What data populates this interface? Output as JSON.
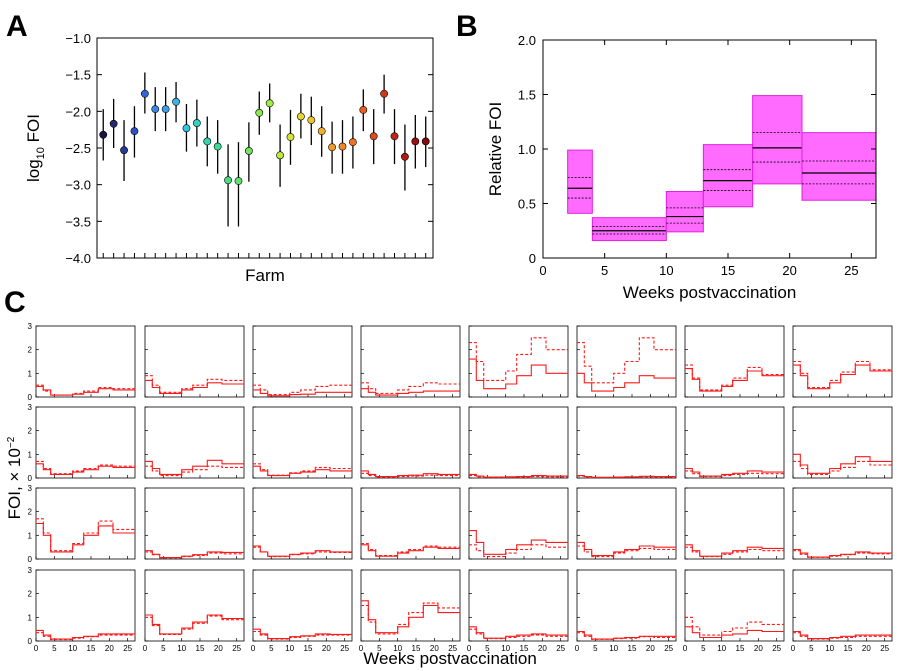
{
  "chart_data": [
    {
      "panel": "A",
      "type": "scatter",
      "xlabel": "Farm",
      "ylabel_base": "log",
      "ylabel_sub": "10",
      "ylabel_rest": " FOI",
      "ylim": [
        -4.0,
        -1.0
      ],
      "yticks": [
        -4.0,
        -3.5,
        -3.0,
        -2.5,
        -2.0,
        -1.5,
        -1.0
      ],
      "ytick_labels": [
        "−4.0",
        "−3.5",
        "−3.0",
        "−2.5",
        "−2.0",
        "−1.5",
        "−1.0"
      ],
      "xlim": [
        0,
        32
      ],
      "points": [
        {
          "farm": 1,
          "mean": -2.32,
          "low": -2.67,
          "high": -1.97,
          "color": "#1a1446"
        },
        {
          "farm": 2,
          "mean": -2.17,
          "low": -2.5,
          "high": -1.83,
          "color": "#232a72"
        },
        {
          "farm": 3,
          "mean": -2.53,
          "low": -2.95,
          "high": -2.12,
          "color": "#28389a"
        },
        {
          "farm": 4,
          "mean": -2.27,
          "low": -2.63,
          "high": -1.93,
          "color": "#2c50c0"
        },
        {
          "farm": 5,
          "mean": -1.76,
          "low": -2.03,
          "high": -1.47,
          "color": "#3266d8"
        },
        {
          "farm": 6,
          "mean": -1.97,
          "low": -2.27,
          "high": -1.67,
          "color": "#3a82e4"
        },
        {
          "farm": 7,
          "mean": -1.97,
          "low": -2.27,
          "high": -1.67,
          "color": "#3c9ee8"
        },
        {
          "farm": 8,
          "mean": -1.87,
          "low": -2.15,
          "high": -1.6,
          "color": "#3cb4e6"
        },
        {
          "farm": 9,
          "mean": -2.23,
          "low": -2.55,
          "high": -1.9,
          "color": "#30c8dc"
        },
        {
          "farm": 10,
          "mean": -2.16,
          "low": -2.48,
          "high": -1.84,
          "color": "#2ed2c4"
        },
        {
          "farm": 11,
          "mean": -2.41,
          "low": -2.75,
          "high": -2.07,
          "color": "#34d6ac"
        },
        {
          "farm": 12,
          "mean": -2.48,
          "low": -2.85,
          "high": -2.12,
          "color": "#3cdc96"
        },
        {
          "farm": 13,
          "mean": -2.94,
          "low": -3.57,
          "high": -2.45,
          "color": "#48e07e"
        },
        {
          "farm": 14,
          "mean": -2.95,
          "low": -3.57,
          "high": -2.42,
          "color": "#5ae46c"
        },
        {
          "farm": 15,
          "mean": -2.54,
          "low": -2.96,
          "high": -2.15,
          "color": "#6ee85a"
        },
        {
          "farm": 16,
          "mean": -2.02,
          "low": -2.32,
          "high": -1.73,
          "color": "#88ea4c"
        },
        {
          "farm": 17,
          "mean": -1.89,
          "low": -2.15,
          "high": -1.62,
          "color": "#a0ec42"
        },
        {
          "farm": 18,
          "mean": -2.6,
          "low": -3.03,
          "high": -2.18,
          "color": "#bcea3c"
        },
        {
          "farm": 19,
          "mean": -2.35,
          "low": -2.73,
          "high": -1.98,
          "color": "#d2e436"
        },
        {
          "farm": 20,
          "mean": -2.07,
          "low": -2.37,
          "high": -1.76,
          "color": "#e4d632"
        },
        {
          "farm": 21,
          "mean": -2.12,
          "low": -2.46,
          "high": -1.8,
          "color": "#ecc22e"
        },
        {
          "farm": 22,
          "mean": -2.27,
          "low": -2.62,
          "high": -1.93,
          "color": "#f0ae2a"
        },
        {
          "farm": 23,
          "mean": -2.49,
          "low": -2.85,
          "high": -2.14,
          "color": "#f29a28"
        },
        {
          "farm": 24,
          "mean": -2.48,
          "low": -2.85,
          "high": -2.12,
          "color": "#f08626"
        },
        {
          "farm": 25,
          "mean": -2.42,
          "low": -2.78,
          "high": -2.07,
          "color": "#ec7224"
        },
        {
          "farm": 26,
          "mean": -1.98,
          "low": -2.27,
          "high": -1.7,
          "color": "#e85e22"
        },
        {
          "farm": 27,
          "mean": -2.34,
          "low": -2.72,
          "high": -1.97,
          "color": "#e04a1e"
        },
        {
          "farm": 28,
          "mean": -1.76,
          "low": -2.03,
          "high": -1.5,
          "color": "#d2361a"
        },
        {
          "farm": 29,
          "mean": -2.34,
          "low": -2.72,
          "high": -1.97,
          "color": "#c22616"
        },
        {
          "farm": 30,
          "mean": -2.62,
          "low": -3.08,
          "high": -2.18,
          "color": "#b01a12"
        },
        {
          "farm": 31,
          "mean": -2.41,
          "low": -2.78,
          "high": -2.05,
          "color": "#9a100e"
        },
        {
          "farm": 32,
          "mean": -2.41,
          "low": -2.76,
          "high": -2.07,
          "color": "#82080a"
        }
      ]
    },
    {
      "panel": "B",
      "type": "bar",
      "xlabel": "Weeks postvaccination",
      "ylabel": "Relative FOI",
      "xlim": [
        0,
        27
      ],
      "ylim": [
        0,
        2.0
      ],
      "xticks": [
        0,
        5,
        10,
        15,
        20,
        25
      ],
      "xtick_labels": [
        "0",
        "5",
        "10",
        "15",
        "20",
        "25"
      ],
      "yticks": [
        0,
        0.5,
        1.0,
        1.5,
        2.0
      ],
      "ytick_labels": [
        "0",
        "0.5",
        "1.0",
        "1.5",
        "2.0"
      ],
      "fill_color": "#ff6bff",
      "edge_color": "#e020e0",
      "intervals": [
        {
          "start": 2,
          "end": 4,
          "low": 0.41,
          "high": 0.99,
          "median": 0.64,
          "q_low": 0.55,
          "q_high": 0.74
        },
        {
          "start": 4,
          "end": 10,
          "low": 0.16,
          "high": 0.37,
          "median": 0.25,
          "q_low": 0.22,
          "q_high": 0.29
        },
        {
          "start": 10,
          "end": 13,
          "low": 0.24,
          "high": 0.61,
          "median": 0.38,
          "q_low": 0.32,
          "q_high": 0.46
        },
        {
          "start": 13,
          "end": 17,
          "low": 0.47,
          "high": 1.04,
          "median": 0.71,
          "q_low": 0.62,
          "q_high": 0.81
        },
        {
          "start": 17,
          "end": 21,
          "low": 0.68,
          "high": 1.49,
          "median": 1.01,
          "q_low": 0.88,
          "q_high": 1.15
        },
        {
          "start": 21,
          "end": 27,
          "low": 0.53,
          "high": 1.15,
          "median": 0.78,
          "q_low": 0.68,
          "q_high": 0.89
        }
      ]
    },
    {
      "panel": "C",
      "type": "line",
      "xlabel": "Weeks postvaccination",
      "ylabel_base": "FOI, × 10",
      "ylabel_sup": "−2",
      "xlim": [
        0,
        27
      ],
      "ylim": [
        0,
        3
      ],
      "xticks": [
        0,
        5,
        10,
        15,
        20,
        25
      ],
      "xtick_labels": [
        "0",
        "5",
        "10",
        "15",
        "20",
        "25"
      ],
      "yticks": [
        0,
        1,
        2,
        3
      ],
      "ytick_labels": [
        "0",
        "1",
        "2",
        "3"
      ],
      "line_color": "#ff1a1a",
      "breaks": [
        0,
        2,
        4,
        10,
        13,
        17,
        21,
        27
      ],
      "rows": [
        [
          {
            "solid": [
              0.45,
              0.3,
              0.08,
              0.12,
              0.2,
              0.35,
              0.3
            ],
            "dashed": [
              0.5,
              0.25,
              0.08,
              0.15,
              0.25,
              0.4,
              0.35
            ]
          },
          {
            "solid": [
              0.7,
              0.4,
              0.15,
              0.3,
              0.4,
              0.6,
              0.55
            ],
            "dashed": [
              0.9,
              0.5,
              0.2,
              0.35,
              0.5,
              0.75,
              0.7
            ]
          },
          {
            "solid": [
              0.3,
              0.15,
              0.05,
              0.1,
              0.12,
              0.2,
              0.2
            ],
            "dashed": [
              0.5,
              0.3,
              0.1,
              0.2,
              0.3,
              0.45,
              0.5
            ]
          },
          {
            "solid": [
              0.35,
              0.2,
              0.08,
              0.15,
              0.2,
              0.25,
              0.25
            ],
            "dashed": [
              0.6,
              0.35,
              0.15,
              0.3,
              0.45,
              0.6,
              0.55
            ]
          },
          {
            "solid": [
              1.6,
              0.7,
              0.35,
              0.55,
              0.9,
              1.35,
              1.0
            ],
            "dashed": [
              2.3,
              1.5,
              0.7,
              1.1,
              1.8,
              2.5,
              2.0
            ]
          },
          {
            "solid": [
              1.0,
              0.6,
              0.25,
              0.4,
              0.6,
              0.9,
              0.8
            ],
            "dashed": [
              2.3,
              1.3,
              0.6,
              1.0,
              1.5,
              2.5,
              2.0
            ]
          },
          {
            "solid": [
              1.2,
              0.75,
              0.25,
              0.45,
              0.7,
              1.1,
              0.9
            ],
            "dashed": [
              1.35,
              0.8,
              0.3,
              0.5,
              0.8,
              1.25,
              0.95
            ]
          },
          {
            "solid": [
              1.35,
              0.9,
              0.35,
              0.6,
              0.95,
              1.35,
              1.1
            ],
            "dashed": [
              1.5,
              1.0,
              0.4,
              0.7,
              1.05,
              1.5,
              1.15
            ]
          }
        ],
        [
          {
            "solid": [
              0.6,
              0.35,
              0.15,
              0.25,
              0.35,
              0.5,
              0.45
            ],
            "dashed": [
              0.7,
              0.4,
              0.18,
              0.3,
              0.4,
              0.55,
              0.5
            ]
          },
          {
            "solid": [
              0.7,
              0.4,
              0.15,
              0.35,
              0.5,
              0.75,
              0.6
            ],
            "dashed": [
              0.5,
              0.3,
              0.1,
              0.25,
              0.35,
              0.5,
              0.45
            ]
          },
          {
            "solid": [
              0.5,
              0.3,
              0.1,
              0.2,
              0.25,
              0.35,
              0.3
            ],
            "dashed": [
              0.6,
              0.35,
              0.12,
              0.22,
              0.3,
              0.45,
              0.4
            ]
          },
          {
            "solid": [
              0.3,
              0.15,
              0.06,
              0.1,
              0.12,
              0.18,
              0.15
            ],
            "dashed": [
              0.2,
              0.1,
              0.04,
              0.06,
              0.08,
              0.12,
              0.1
            ]
          },
          {
            "solid": [
              0.15,
              0.08,
              0.04,
              0.05,
              0.06,
              0.1,
              0.08
            ],
            "dashed": [
              0.1,
              0.05,
              0.02,
              0.03,
              0.04,
              0.06,
              0.05
            ]
          },
          {
            "solid": [
              0.1,
              0.06,
              0.03,
              0.04,
              0.05,
              0.07,
              0.06
            ],
            "dashed": [
              0.08,
              0.05,
              0.02,
              0.03,
              0.04,
              0.05,
              0.04
            ]
          },
          {
            "solid": [
              0.4,
              0.25,
              0.08,
              0.15,
              0.2,
              0.3,
              0.25
            ],
            "dashed": [
              0.3,
              0.18,
              0.06,
              0.1,
              0.15,
              0.2,
              0.18
            ]
          },
          {
            "solid": [
              1.0,
              0.55,
              0.2,
              0.4,
              0.6,
              0.9,
              0.7
            ],
            "dashed": [
              0.7,
              0.4,
              0.15,
              0.3,
              0.45,
              0.7,
              0.55
            ]
          }
        ],
        [
          {
            "solid": [
              1.5,
              1.0,
              0.3,
              0.6,
              1.0,
              1.4,
              1.1
            ],
            "dashed": [
              1.7,
              1.1,
              0.35,
              0.65,
              1.1,
              1.6,
              1.25
            ]
          },
          {
            "solid": [
              0.35,
              0.2,
              0.06,
              0.12,
              0.18,
              0.3,
              0.28
            ],
            "dashed": [
              0.3,
              0.18,
              0.05,
              0.1,
              0.15,
              0.25,
              0.22
            ]
          },
          {
            "solid": [
              0.55,
              0.3,
              0.12,
              0.2,
              0.25,
              0.35,
              0.3
            ],
            "dashed": [
              0.5,
              0.3,
              0.1,
              0.18,
              0.22,
              0.3,
              0.28
            ]
          },
          {
            "solid": [
              0.6,
              0.35,
              0.12,
              0.25,
              0.35,
              0.5,
              0.45
            ],
            "dashed": [
              0.65,
              0.4,
              0.15,
              0.3,
              0.4,
              0.55,
              0.5
            ]
          },
          {
            "solid": [
              1.2,
              0.7,
              0.2,
              0.4,
              0.6,
              0.8,
              0.7
            ],
            "dashed": [
              0.6,
              0.35,
              0.1,
              0.25,
              0.4,
              0.6,
              0.5
            ]
          },
          {
            "solid": [
              0.7,
              0.4,
              0.15,
              0.3,
              0.4,
              0.55,
              0.5
            ],
            "dashed": [
              0.55,
              0.3,
              0.1,
              0.25,
              0.35,
              0.45,
              0.4
            ]
          },
          {
            "solid": [
              0.6,
              0.35,
              0.12,
              0.25,
              0.35,
              0.5,
              0.45
            ],
            "dashed": [
              0.5,
              0.3,
              0.1,
              0.2,
              0.3,
              0.4,
              0.35
            ]
          },
          {
            "solid": [
              0.4,
              0.25,
              0.08,
              0.15,
              0.2,
              0.3,
              0.25
            ],
            "dashed": [
              0.35,
              0.2,
              0.07,
              0.12,
              0.18,
              0.25,
              0.22
            ]
          }
        ],
        [
          {
            "solid": [
              0.45,
              0.25,
              0.08,
              0.15,
              0.2,
              0.3,
              0.3
            ],
            "dashed": [
              0.35,
              0.2,
              0.06,
              0.12,
              0.18,
              0.25,
              0.25
            ]
          },
          {
            "solid": [
              1.1,
              0.7,
              0.3,
              0.55,
              0.8,
              1.1,
              0.95
            ],
            "dashed": [
              1.0,
              0.65,
              0.28,
              0.5,
              0.75,
              1.05,
              0.9
            ]
          },
          {
            "solid": [
              0.5,
              0.3,
              0.1,
              0.18,
              0.22,
              0.3,
              0.28
            ],
            "dashed": [
              0.4,
              0.25,
              0.08,
              0.15,
              0.2,
              0.25,
              0.25
            ]
          },
          {
            "solid": [
              1.7,
              0.9,
              0.35,
              0.6,
              1.0,
              1.5,
              1.2
            ],
            "dashed": [
              1.5,
              0.8,
              0.3,
              0.7,
              1.2,
              1.6,
              1.4
            ]
          },
          {
            "solid": [
              0.6,
              0.35,
              0.12,
              0.2,
              0.25,
              0.3,
              0.25
            ],
            "dashed": [
              0.5,
              0.3,
              0.1,
              0.15,
              0.2,
              0.25,
              0.2
            ]
          },
          {
            "solid": [
              0.4,
              0.25,
              0.08,
              0.12,
              0.15,
              0.2,
              0.2
            ],
            "dashed": [
              0.35,
              0.2,
              0.07,
              0.1,
              0.12,
              0.18,
              0.15
            ]
          },
          {
            "solid": [
              0.6,
              0.35,
              0.15,
              0.25,
              0.3,
              0.45,
              0.4
            ],
            "dashed": [
              1.0,
              0.6,
              0.25,
              0.4,
              0.55,
              0.8,
              0.7
            ]
          },
          {
            "solid": [
              0.4,
              0.25,
              0.1,
              0.15,
              0.2,
              0.25,
              0.25
            ],
            "dashed": [
              0.35,
              0.2,
              0.08,
              0.12,
              0.15,
              0.2,
              0.2
            ]
          }
        ]
      ]
    }
  ],
  "panel_labels": {
    "a": "A",
    "b": "B",
    "c": "C"
  }
}
